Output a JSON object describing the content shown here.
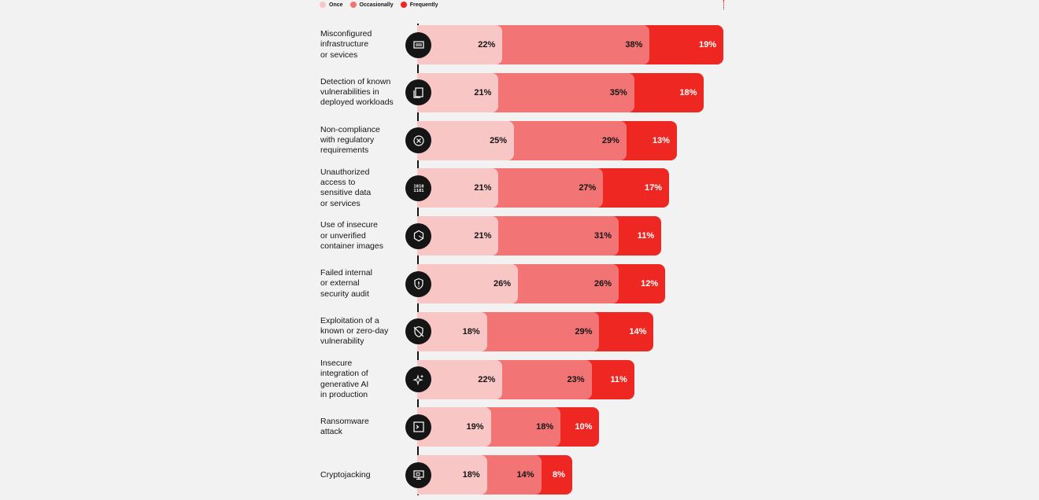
{
  "legend": [
    {
      "label": "Once",
      "color": "#f9c6c6"
    },
    {
      "label": "Occasionally",
      "color": "#f27474"
    },
    {
      "label": "Frequently",
      "color": "#ee2722"
    }
  ],
  "chart_data": {
    "type": "bar",
    "orientation": "horizontal",
    "stacked": true,
    "categories": [
      "Misconfigured infrastructure or sevices",
      "Detection of known vulnerabilities in deployed workloads",
      "Non-compliance with regulatory requirements",
      "Unauthorized access to sensitive data or services",
      "Use of insecure or unverified container images",
      "Failed internal or external security audit",
      "Exploitation of a known or zero-day vulnerability",
      "Insecure integration of generative AI in production",
      "Ransomware attack",
      "Cryptojacking"
    ],
    "category_lines": [
      [
        "Misconfigured",
        "infrastructure",
        "or sevices"
      ],
      [
        "Detection of known",
        "vulnerabilities in",
        "deployed workloads"
      ],
      [
        "Non-compliance",
        "with regulatory",
        "requirements"
      ],
      [
        "Unauthorized",
        "access to",
        "sensitive data",
        "or services"
      ],
      [
        "Use of insecure",
        "or unverified",
        "container images"
      ],
      [
        "Failed internal",
        "or external",
        "security audit"
      ],
      [
        "Exploitation of a",
        "known or zero-day",
        "vulnerability"
      ],
      [
        "Insecure",
        "integration of",
        "generative AI",
        "in production"
      ],
      [
        "Ransomware",
        "attack"
      ],
      [
        "Cryptojacking"
      ]
    ],
    "icons": [
      "server-rack-icon",
      "document-stack-icon",
      "x-circle-icon",
      "binary-code-icon",
      "hexagon-container-icon",
      "shield-alert-icon",
      "shield-slash-icon",
      "sparkles-icon",
      "terminal-icon",
      "monitor-icon"
    ],
    "series": [
      {
        "name": "Once",
        "values": [
          22,
          21,
          25,
          21,
          21,
          26,
          18,
          22,
          19,
          18
        ]
      },
      {
        "name": "Occasionally",
        "values": [
          38,
          35,
          29,
          27,
          31,
          26,
          29,
          23,
          18,
          14
        ]
      },
      {
        "name": "Frequently",
        "values": [
          19,
          18,
          13,
          17,
          11,
          12,
          14,
          11,
          10,
          8
        ]
      }
    ],
    "data_labels": [
      [
        "22%",
        "38%",
        "19%"
      ],
      [
        "21%",
        "35%",
        "18%"
      ],
      [
        "25%",
        "29%",
        "13%"
      ],
      [
        "21%",
        "27%",
        "17%"
      ],
      [
        "21%",
        "31%",
        "11%"
      ],
      [
        "26%",
        "26%",
        "12%"
      ],
      [
        "18%",
        "29%",
        "14%"
      ],
      [
        "22%",
        "23%",
        "11%"
      ],
      [
        "19%",
        "18%",
        "10%"
      ],
      [
        "18%",
        "14%",
        "8%"
      ]
    ],
    "legend_position": "top-left",
    "grid": false
  }
}
